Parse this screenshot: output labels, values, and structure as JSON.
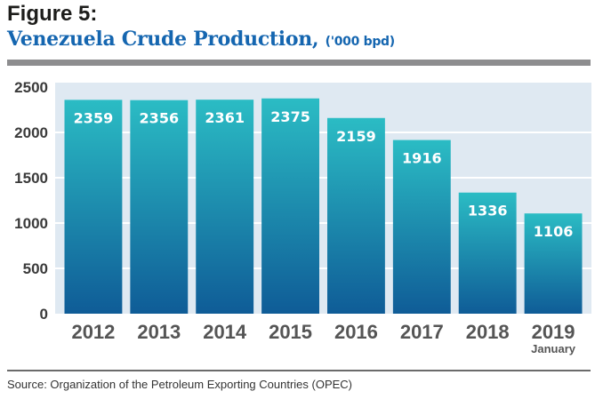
{
  "figure_label": "Figure 5:",
  "title": "Venezuela Crude Production,",
  "title_unit": "('000 bpd)",
  "source": "Source: Organization of the Petroleum Exporting Countries (OPEC)",
  "colors": {
    "title": "#1566b0",
    "bar_top": "#2bbcc4",
    "bar_bottom": "#0f5c97",
    "plot_background": "#dfe9f2",
    "gridline": "#ffffff"
  },
  "chart_data": {
    "type": "bar",
    "title": "Venezuela Crude Production, ('000 bpd)",
    "xlabel": "",
    "ylabel": "",
    "categories": [
      "2012",
      "2013",
      "2014",
      "2015",
      "2016",
      "2017",
      "2018",
      "2019"
    ],
    "category_sublabels": [
      "",
      "",
      "",
      "",
      "",
      "",
      "",
      "January"
    ],
    "values": [
      2359,
      2356,
      2361,
      2375,
      2159,
      1916,
      1336,
      1106
    ],
    "data_labels": [
      "2359",
      "2356",
      "2361",
      "2375",
      "2159",
      "1916",
      "1336",
      "1106"
    ],
    "ylim": [
      0,
      2500
    ],
    "yticks": [
      0,
      500,
      1000,
      1500,
      2000,
      2500
    ],
    "ytick_labels": [
      "0",
      "500",
      "1000",
      "1500",
      "2000",
      "2500"
    ],
    "grid": true,
    "legend": "none"
  }
}
